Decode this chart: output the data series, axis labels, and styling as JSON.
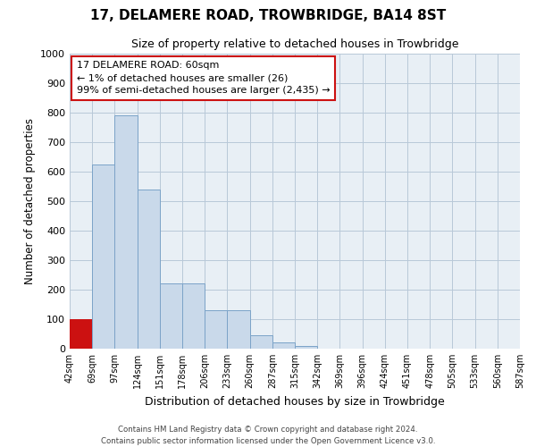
{
  "title": "17, DELAMERE ROAD, TROWBRIDGE, BA14 8ST",
  "subtitle": "Size of property relative to detached houses in Trowbridge",
  "xlabel": "Distribution of detached houses by size in Trowbridge",
  "ylabel": "Number of detached properties",
  "bar_values": [
    100,
    625,
    790,
    540,
    220,
    220,
    130,
    130,
    45,
    20,
    10,
    0,
    0,
    0,
    0,
    0,
    0,
    0,
    0,
    0
  ],
  "bar_labels": [
    "42sqm",
    "69sqm",
    "97sqm",
    "124sqm",
    "151sqm",
    "178sqm",
    "206sqm",
    "233sqm",
    "260sqm",
    "287sqm",
    "315sqm",
    "342sqm",
    "369sqm",
    "396sqm",
    "424sqm",
    "451sqm",
    "478sqm",
    "505sqm",
    "533sqm",
    "560sqm",
    "587sqm"
  ],
  "bar_color": "#c9d9ea",
  "bar_edge_color": "#7ba3c8",
  "highlight_bar_index": 0,
  "highlight_color": "#cc1111",
  "ylim_max": 1000,
  "yticks": [
    0,
    100,
    200,
    300,
    400,
    500,
    600,
    700,
    800,
    900,
    1000
  ],
  "annotation_title": "17 DELAMERE ROAD: 60sqm",
  "annotation_line1": "← 1% of detached houses are smaller (26)",
  "annotation_line2": "99% of semi-detached houses are larger (2,435) →",
  "annotation_box_bg": "#ffffff",
  "annotation_box_border": "#cc1111",
  "footer_line1": "Contains HM Land Registry data © Crown copyright and database right 2024.",
  "footer_line2": "Contains public sector information licensed under the Open Government Licence v3.0.",
  "plot_bg": "#e8eff5",
  "grid_color": "#b8c8d8"
}
